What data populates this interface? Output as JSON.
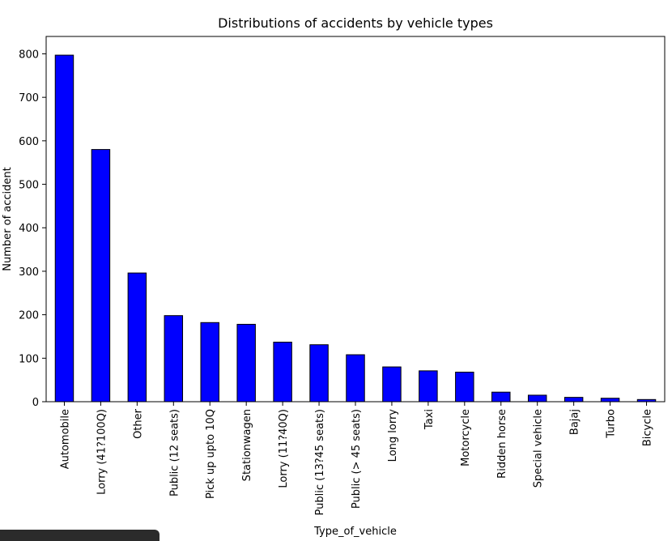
{
  "chart_data": {
    "type": "bar",
    "title": "Distributions of accidents by vehicle types",
    "xlabel": "Type_of_vehicle",
    "ylabel": "Number of accident",
    "categories": [
      "Automobile",
      "Lorry (41?100Q)",
      "Other",
      "Public (12 seats)",
      "Pick up upto 10Q",
      "Stationwagen",
      "Lorry (11?40Q)",
      "Public (13?45 seats)",
      "Public (> 45 seats)",
      "Long lorry",
      "Taxi",
      "Motorcycle",
      "Ridden horse",
      "Special vehicle",
      "Bajaj",
      "Turbo",
      "Bicycle"
    ],
    "values": [
      797,
      580,
      296,
      198,
      182,
      178,
      137,
      131,
      108,
      80,
      71,
      68,
      22,
      15,
      10,
      8,
      5
    ],
    "ylim": [
      0,
      840
    ],
    "yticks": [
      0,
      100,
      200,
      300,
      400,
      500,
      600,
      700,
      800
    ],
    "grid": false,
    "legend": "none",
    "bar_color": "#0000ff",
    "edge_color": "#000000"
  }
}
